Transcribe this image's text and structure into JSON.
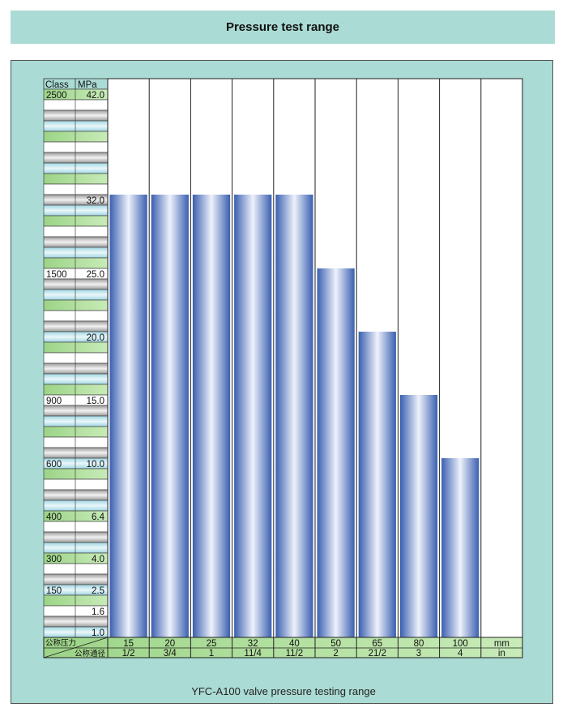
{
  "header": {
    "title": "Pressure test range"
  },
  "caption": "YFC-A100 valve pressure testing range",
  "colors": {
    "panel": "#aadbd4",
    "bar_dark": "#3a5fb0",
    "bar_light": "#eef2fb",
    "band_green": "#a8d890",
    "band_gray": "#bdbdbd",
    "band_cyan": "#bfe6ee"
  },
  "chart_data": {
    "type": "bar",
    "title": "Pressure test range",
    "scale_header": {
      "class_label": "Class",
      "mpa_label": "MPa"
    },
    "scale_rows": [
      {
        "class_label": "2500",
        "mpa_label": "42.0",
        "tone": "green"
      },
      {
        "class_label": "",
        "mpa_label": "",
        "tone": "white"
      },
      {
        "class_label": "",
        "mpa_label": "",
        "tone": "gray"
      },
      {
        "class_label": "",
        "mpa_label": "",
        "tone": "cyan"
      },
      {
        "class_label": "",
        "mpa_label": "",
        "tone": "green"
      },
      {
        "class_label": "",
        "mpa_label": "",
        "tone": "white"
      },
      {
        "class_label": "",
        "mpa_label": "",
        "tone": "gray"
      },
      {
        "class_label": "",
        "mpa_label": "",
        "tone": "cyan"
      },
      {
        "class_label": "",
        "mpa_label": "",
        "tone": "green"
      },
      {
        "class_label": "",
        "mpa_label": "",
        "tone": "white"
      },
      {
        "class_label": "",
        "mpa_label": "32.0",
        "tone": "gray"
      },
      {
        "class_label": "",
        "mpa_label": "",
        "tone": "cyan"
      },
      {
        "class_label": "",
        "mpa_label": "",
        "tone": "green"
      },
      {
        "class_label": "",
        "mpa_label": "",
        "tone": "white"
      },
      {
        "class_label": "",
        "mpa_label": "",
        "tone": "gray"
      },
      {
        "class_label": "",
        "mpa_label": "",
        "tone": "cyan"
      },
      {
        "class_label": "",
        "mpa_label": "",
        "tone": "green"
      },
      {
        "class_label": "1500",
        "mpa_label": "25.0",
        "tone": "white"
      },
      {
        "class_label": "",
        "mpa_label": "",
        "tone": "gray"
      },
      {
        "class_label": "",
        "mpa_label": "",
        "tone": "cyan"
      },
      {
        "class_label": "",
        "mpa_label": "",
        "tone": "green"
      },
      {
        "class_label": "",
        "mpa_label": "",
        "tone": "white"
      },
      {
        "class_label": "",
        "mpa_label": "",
        "tone": "gray"
      },
      {
        "class_label": "",
        "mpa_label": "20.0",
        "tone": "cyan"
      },
      {
        "class_label": "",
        "mpa_label": "",
        "tone": "green"
      },
      {
        "class_label": "",
        "mpa_label": "",
        "tone": "white"
      },
      {
        "class_label": "",
        "mpa_label": "",
        "tone": "gray"
      },
      {
        "class_label": "",
        "mpa_label": "",
        "tone": "cyan"
      },
      {
        "class_label": "",
        "mpa_label": "",
        "tone": "green"
      },
      {
        "class_label": "900",
        "mpa_label": "15.0",
        "tone": "white"
      },
      {
        "class_label": "",
        "mpa_label": "",
        "tone": "gray"
      },
      {
        "class_label": "",
        "mpa_label": "",
        "tone": "cyan"
      },
      {
        "class_label": "",
        "mpa_label": "",
        "tone": "green"
      },
      {
        "class_label": "",
        "mpa_label": "",
        "tone": "white"
      },
      {
        "class_label": "",
        "mpa_label": "",
        "tone": "gray"
      },
      {
        "class_label": "600",
        "mpa_label": "10.0",
        "tone": "cyan"
      },
      {
        "class_label": "",
        "mpa_label": "",
        "tone": "green"
      },
      {
        "class_label": "",
        "mpa_label": "",
        "tone": "white"
      },
      {
        "class_label": "",
        "mpa_label": "",
        "tone": "gray"
      },
      {
        "class_label": "",
        "mpa_label": "",
        "tone": "cyan"
      },
      {
        "class_label": "400",
        "mpa_label": "6.4",
        "tone": "green"
      },
      {
        "class_label": "",
        "mpa_label": "",
        "tone": "white"
      },
      {
        "class_label": "",
        "mpa_label": "",
        "tone": "gray"
      },
      {
        "class_label": "",
        "mpa_label": "",
        "tone": "cyan"
      },
      {
        "class_label": "300",
        "mpa_label": "4.0",
        "tone": "green"
      },
      {
        "class_label": "",
        "mpa_label": "",
        "tone": "white"
      },
      {
        "class_label": "",
        "mpa_label": "",
        "tone": "gray"
      },
      {
        "class_label": "150",
        "mpa_label": "2.5",
        "tone": "cyan"
      },
      {
        "class_label": "",
        "mpa_label": "",
        "tone": "green"
      },
      {
        "class_label": "",
        "mpa_label": "1.6",
        "tone": "white"
      },
      {
        "class_label": "",
        "mpa_label": "",
        "tone": "gray"
      },
      {
        "class_label": "",
        "mpa_label": "1.0",
        "tone": "cyan"
      }
    ],
    "bars": [
      {
        "mm": "15",
        "inch": "1/2",
        "mpa": 32.0
      },
      {
        "mm": "20",
        "inch": "3/4",
        "mpa": 32.0
      },
      {
        "mm": "25",
        "inch": "1",
        "mpa": 32.0
      },
      {
        "mm": "32",
        "inch": "11/4",
        "mpa": 32.0
      },
      {
        "mm": "40",
        "inch": "11/2",
        "mpa": 32.0
      },
      {
        "mm": "50",
        "inch": "2",
        "mpa": 25.0
      },
      {
        "mm": "65",
        "inch": "21/2",
        "mpa": 20.0
      },
      {
        "mm": "80",
        "inch": "3",
        "mpa": 15.0
      },
      {
        "mm": "100",
        "inch": "4",
        "mpa": 10.0
      }
    ],
    "footer": {
      "row1_label": "公称压力",
      "row2_label": "公称通径",
      "unit_mm": "mm",
      "unit_in": "in"
    }
  }
}
